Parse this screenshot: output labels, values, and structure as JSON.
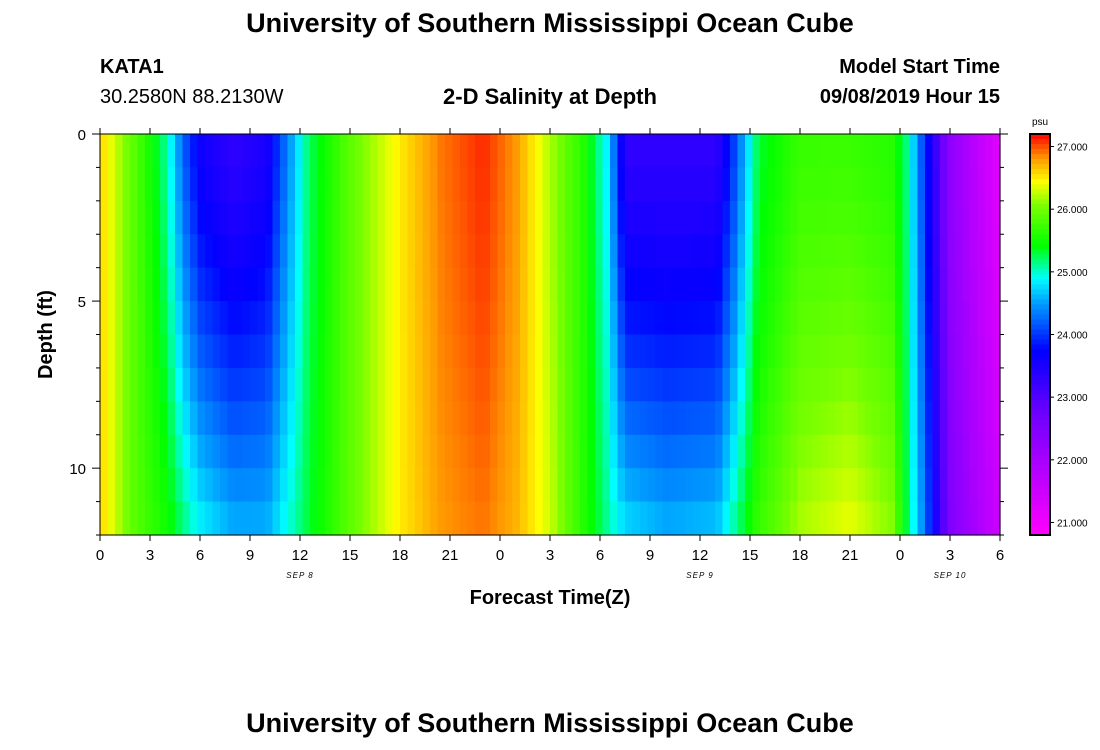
{
  "header": {
    "title": "University of Southern Mississippi Ocean Cube",
    "footer_title": "University of Southern Mississippi Ocean Cube",
    "station_id": "KATA1",
    "station_coords": "30.2580N 88.2130W",
    "chart_title": "2-D Salinity at Depth",
    "model_label": "Model Start Time",
    "model_time": "09/08/2019 Hour 15"
  },
  "chart_data": {
    "type": "heatmap",
    "title": "2-D Salinity at Depth",
    "xlabel": "Forecast Time(Z)",
    "ylabel": "Depth (ft)",
    "colorbar_unit": "psu",
    "colorbar_ticks": [
      "27.000",
      "26.000",
      "25.000",
      "24.000",
      "23.000",
      "22.000",
      "21.000"
    ],
    "colorbar_range": [
      20.8,
      27.2
    ],
    "x_ticks": [
      "0",
      "3",
      "6",
      "9",
      "12",
      "15",
      "18",
      "21",
      "0",
      "3",
      "6",
      "9",
      "12",
      "15",
      "18",
      "21",
      "0",
      "3",
      "6"
    ],
    "x_dates": [
      {
        "label": "SEP 8",
        "tick_index": 4
      },
      {
        "label": "SEP 9",
        "tick_index": 12
      },
      {
        "label": "SEP 10",
        "tick_index": 17
      }
    ],
    "y_ticks": [
      0,
      5,
      10
    ],
    "ylim": [
      0,
      12
    ],
    "x_range_hours": [
      0,
      54
    ],
    "depth_rows": 12,
    "salinity_profile": [
      {
        "hour": 0,
        "surface": 26.6,
        "bottom": 26.6
      },
      {
        "hour": 2,
        "surface": 25.9,
        "bottom": 25.9
      },
      {
        "hour": 4,
        "surface": 25.1,
        "bottom": 25.5
      },
      {
        "hour": 5,
        "surface": 24.2,
        "bottom": 25.2
      },
      {
        "hour": 6,
        "surface": 23.6,
        "bottom": 24.9
      },
      {
        "hour": 8,
        "surface": 23.3,
        "bottom": 24.6
      },
      {
        "hour": 10,
        "surface": 23.5,
        "bottom": 24.6
      },
      {
        "hour": 11,
        "surface": 24.2,
        "bottom": 24.9
      },
      {
        "hour": 12.5,
        "surface": 25.2,
        "bottom": 25.3
      },
      {
        "hour": 15,
        "surface": 25.9,
        "bottom": 25.9
      },
      {
        "hour": 18,
        "surface": 26.5,
        "bottom": 26.5
      },
      {
        "hour": 20.5,
        "surface": 26.9,
        "bottom": 26.8
      },
      {
        "hour": 23,
        "surface": 27.1,
        "bottom": 26.9
      },
      {
        "hour": 25,
        "surface": 26.8,
        "bottom": 26.7
      },
      {
        "hour": 27,
        "surface": 26.2,
        "bottom": 26.3
      },
      {
        "hour": 29,
        "surface": 25.6,
        "bottom": 25.6
      },
      {
        "hour": 30.5,
        "surface": 24.8,
        "bottom": 25.1
      },
      {
        "hour": 31.5,
        "surface": 23.3,
        "bottom": 24.8
      },
      {
        "hour": 34,
        "surface": 23.3,
        "bottom": 24.6
      },
      {
        "hour": 37,
        "surface": 23.3,
        "bottom": 24.7
      },
      {
        "hour": 38,
        "surface": 24.0,
        "bottom": 25.1
      },
      {
        "hour": 39.5,
        "surface": 25.3,
        "bottom": 25.7
      },
      {
        "hour": 42,
        "surface": 25.7,
        "bottom": 26.2
      },
      {
        "hour": 45,
        "surface": 25.7,
        "bottom": 26.4
      },
      {
        "hour": 47.5,
        "surface": 25.6,
        "bottom": 26.1
      },
      {
        "hour": 48.5,
        "surface": 25.1,
        "bottom": 25.2
      },
      {
        "hour": 49.5,
        "surface": 23.9,
        "bottom": 24.3
      },
      {
        "hour": 51,
        "surface": 22.3,
        "bottom": 22.5
      },
      {
        "hour": 54,
        "surface": 21.2,
        "bottom": 21.5
      }
    ]
  }
}
